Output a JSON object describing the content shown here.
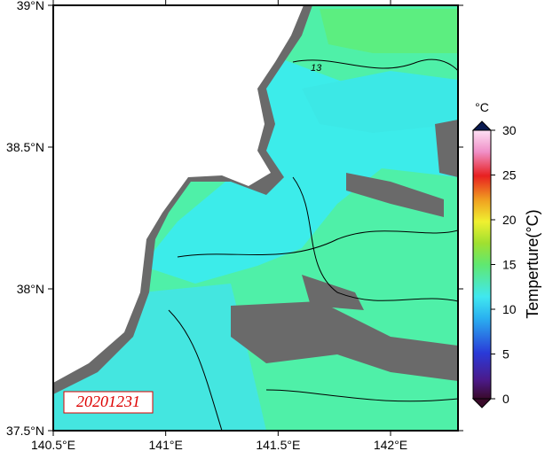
{
  "map": {
    "xlim": [
      140.5,
      142.3
    ],
    "ylim": [
      37.5,
      39
    ],
    "xticks": [
      {
        "value": 140.5,
        "label": "140.5°E"
      },
      {
        "value": 141,
        "label": "141°E"
      },
      {
        "value": 141.5,
        "label": "141.5°E"
      },
      {
        "value": 142,
        "label": "142°E"
      }
    ],
    "yticks": [
      {
        "value": 37.5,
        "label": "37.5°N"
      },
      {
        "value": 38,
        "label": "38°N"
      },
      {
        "value": 38.5,
        "label": "38.5°N"
      },
      {
        "value": 39,
        "label": "39°N"
      }
    ],
    "date_label": "20201231",
    "contour_label": "13"
  },
  "colorbar": {
    "unit": "°C",
    "label": "Temperture(°C)",
    "lim": [
      0,
      30
    ],
    "ticks": [
      0,
      5,
      10,
      15,
      20,
      25,
      30
    ]
  }
}
